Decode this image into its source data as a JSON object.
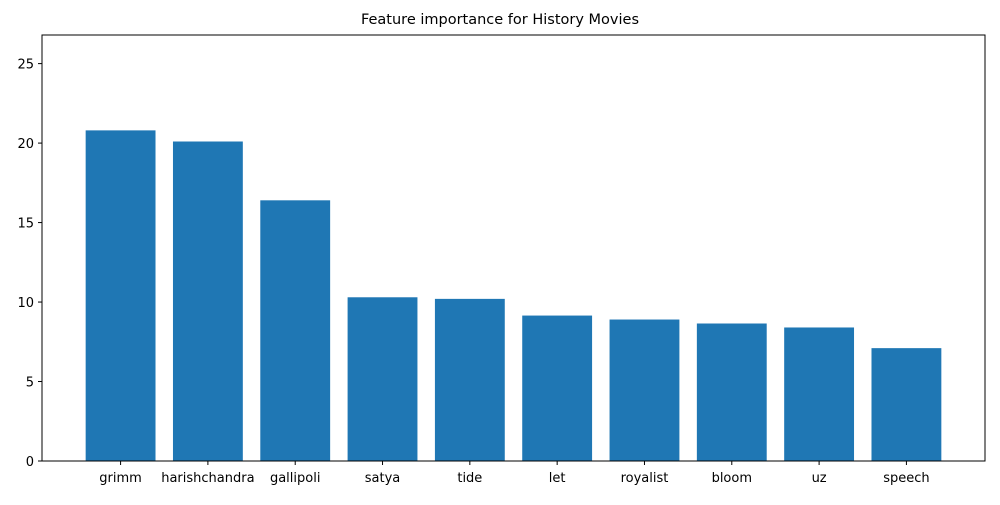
{
  "chart_data": {
    "type": "bar",
    "title": "Feature importance for History Movies",
    "xlabel": "",
    "ylabel": "",
    "categories": [
      "grimm",
      "harishchandra",
      "gallipoli",
      "satya",
      "tide",
      "let",
      "royalist",
      "bloom",
      "uz",
      "speech"
    ],
    "values": [
      20.8,
      20.1,
      16.4,
      10.3,
      10.2,
      9.15,
      8.9,
      8.65,
      8.4,
      7.1
    ],
    "ylim": [
      0,
      26.8
    ],
    "yticks": [
      0,
      5,
      10,
      15,
      20,
      25
    ],
    "grid": false,
    "bar_color": "#1f77b4"
  }
}
